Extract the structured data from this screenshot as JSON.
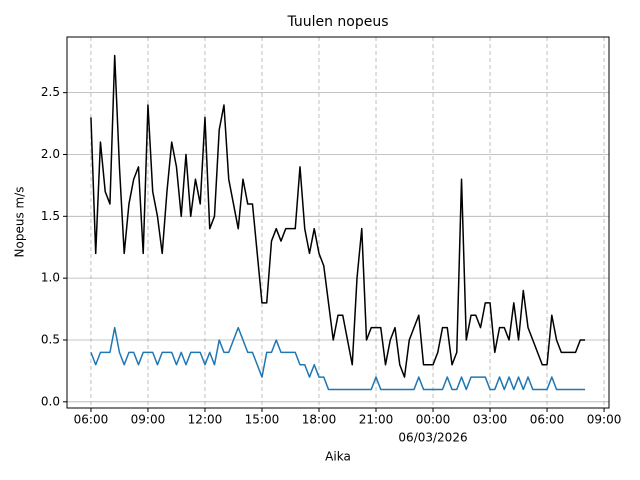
{
  "chart_data": {
    "type": "line",
    "title": "Tuulen nopeus",
    "x_label": "Aika",
    "y_label": "Nopeus m/s",
    "date_label": "06/03/2026",
    "x": [
      6,
      6.25,
      6.5,
      6.75,
      7,
      7.25,
      7.5,
      7.75,
      8,
      8.25,
      8.5,
      8.75,
      9,
      9.25,
      9.5,
      9.75,
      10,
      10.25,
      10.5,
      10.75,
      11,
      11.25,
      11.5,
      11.75,
      12,
      12.25,
      12.5,
      12.75,
      13,
      13.25,
      13.5,
      13.75,
      14,
      14.25,
      14.5,
      14.75,
      15,
      15.25,
      15.5,
      15.75,
      16,
      16.25,
      16.5,
      16.75,
      17,
      17.25,
      17.5,
      17.75,
      18,
      18.25,
      18.5,
      18.75,
      19,
      19.25,
      19.5,
      19.75,
      20,
      20.25,
      20.5,
      20.75,
      21,
      21.25,
      21.5,
      21.75,
      22,
      22.25,
      22.5,
      22.75,
      23,
      23.25,
      23.5,
      23.75,
      24,
      24.25,
      24.5,
      24.75,
      25,
      25.25,
      25.5,
      25.75,
      26,
      26.25,
      26.5,
      26.75,
      27,
      27.25,
      27.5,
      27.75,
      28,
      28.25,
      28.5,
      28.75,
      29,
      29.25,
      29.5,
      29.75,
      30,
      30.25,
      30.5,
      30.75,
      31,
      31.25,
      31.5,
      31.75,
      32
    ],
    "series": [
      {
        "color": "#000000",
        "values": [
          2.3,
          1.2,
          2.1,
          1.7,
          1.6,
          2.8,
          1.9,
          1.2,
          1.6,
          1.8,
          1.9,
          1.2,
          2.4,
          1.7,
          1.5,
          1.2,
          1.7,
          2.1,
          1.9,
          1.5,
          2.0,
          1.5,
          1.8,
          1.6,
          2.3,
          1.4,
          1.5,
          2.2,
          2.4,
          1.8,
          1.6,
          1.4,
          1.8,
          1.6,
          1.6,
          1.2,
          0.8,
          0.8,
          1.3,
          1.4,
          1.3,
          1.4,
          1.4,
          1.4,
          1.9,
          1.4,
          1.2,
          1.4,
          1.2,
          1.1,
          0.8,
          0.5,
          0.7,
          0.7,
          0.5,
          0.3,
          1.0,
          1.4,
          0.5,
          0.6,
          0.6,
          0.6,
          0.3,
          0.5,
          0.6,
          0.3,
          0.2,
          0.5,
          0.6,
          0.7,
          0.3,
          0.3,
          0.3,
          0.4,
          0.6,
          0.6,
          0.3,
          0.4,
          1.8,
          0.5,
          0.7,
          0.7,
          0.6,
          0.8,
          0.8,
          0.4,
          0.6,
          0.6,
          0.5,
          0.8,
          0.5,
          0.9,
          0.6,
          0.5,
          0.4,
          0.3,
          0.3,
          0.7,
          0.5,
          0.4,
          0.4,
          0.4,
          0.4,
          0.5,
          0.5
        ]
      },
      {
        "color": "#1f77b4",
        "values": [
          0.4,
          0.3,
          0.4,
          0.4,
          0.4,
          0.6,
          0.4,
          0.3,
          0.4,
          0.4,
          0.3,
          0.4,
          0.4,
          0.4,
          0.3,
          0.4,
          0.4,
          0.4,
          0.3,
          0.4,
          0.3,
          0.4,
          0.4,
          0.4,
          0.3,
          0.4,
          0.3,
          0.5,
          0.4,
          0.4,
          0.5,
          0.6,
          0.5,
          0.4,
          0.4,
          0.3,
          0.2,
          0.4,
          0.4,
          0.5,
          0.4,
          0.4,
          0.4,
          0.4,
          0.3,
          0.3,
          0.2,
          0.3,
          0.2,
          0.2,
          0.1,
          0.1,
          0.1,
          0.1,
          0.1,
          0.1,
          0.1,
          0.1,
          0.1,
          0.1,
          0.2,
          0.1,
          0.1,
          0.1,
          0.1,
          0.1,
          0.1,
          0.1,
          0.1,
          0.2,
          0.1,
          0.1,
          0.1,
          0.1,
          0.1,
          0.2,
          0.1,
          0.1,
          0.2,
          0.1,
          0.2,
          0.2,
          0.2,
          0.2,
          0.1,
          0.1,
          0.2,
          0.1,
          0.2,
          0.1,
          0.2,
          0.1,
          0.2,
          0.1,
          0.1,
          0.1,
          0.1,
          0.2,
          0.1,
          0.1,
          0.1,
          0.1,
          0.1,
          0.1,
          0.1
        ]
      }
    ],
    "xlim": [
      4.74,
      33.26
    ],
    "ylim": [
      -0.05,
      2.95
    ],
    "xticks": [
      {
        "value": 6,
        "label": "06:00"
      },
      {
        "value": 9,
        "label": "09:00"
      },
      {
        "value": 12,
        "label": "12:00"
      },
      {
        "value": 15,
        "label": "15:00"
      },
      {
        "value": 18,
        "label": "18:00"
      },
      {
        "value": 21,
        "label": "21:00"
      },
      {
        "value": 24,
        "label": "00:00"
      },
      {
        "value": 27,
        "label": "03:00"
      },
      {
        "value": 30,
        "label": "06:00"
      },
      {
        "value": 33,
        "label": "09:00"
      }
    ],
    "yticks": [
      {
        "value": 0,
        "label": "0.0"
      },
      0.5,
      {
        "value": 1,
        "label": "1.0"
      },
      1.5,
      {
        "value": 2,
        "label": "2.0"
      },
      2.5
    ],
    "grid": true
  }
}
